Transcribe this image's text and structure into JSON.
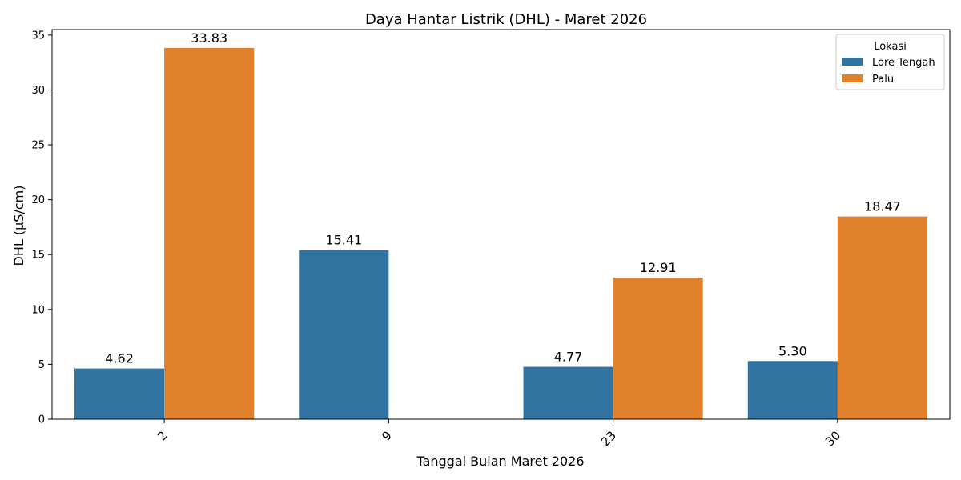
{
  "chart_data": {
    "type": "bar",
    "title": "Daya Hantar Listrik (DHL) - Maret 2026",
    "xlabel": "Tanggal Bulan Maret 2026",
    "ylabel": "DHL (µS/cm)",
    "categories": [
      "2",
      "9",
      "23",
      "30"
    ],
    "ylim": [
      0,
      35.5
    ],
    "yticks": [
      0,
      5,
      10,
      15,
      20,
      25,
      30,
      35
    ],
    "legend_title": "Lokasi",
    "legend_position": "top-right",
    "grid": false,
    "series": [
      {
        "name": "Lore Tengah",
        "color": "#3274a1",
        "values": [
          4.62,
          15.41,
          4.77,
          5.3
        ],
        "labels": [
          "4.62",
          "15.41",
          "4.77",
          "5.30"
        ]
      },
      {
        "name": "Palu",
        "color": "#e1812c",
        "values": [
          33.83,
          null,
          12.91,
          18.47
        ],
        "labels": [
          "33.83",
          "",
          "12.91",
          "18.47"
        ]
      }
    ]
  }
}
